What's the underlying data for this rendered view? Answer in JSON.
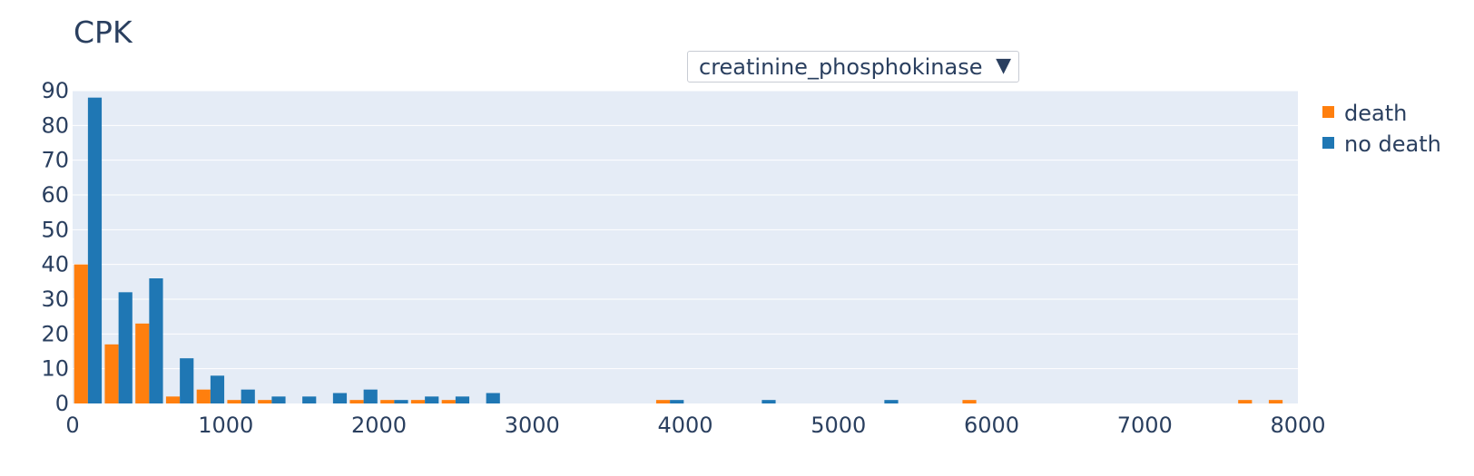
{
  "dropdown": {
    "selected": "creatinine_phosphokinase",
    "arrow": "▼"
  },
  "colors": {
    "death": "#ff7f0e",
    "no_death": "#1f77b4",
    "plot_bg": "#e5ecf6",
    "grid": "#ffffff",
    "text": "#2a3f5f"
  },
  "chart_data": {
    "type": "bar",
    "title": "CPK",
    "xlabel": "",
    "ylabel": "",
    "xlim": [
      0,
      8000
    ],
    "ylim": [
      0,
      90
    ],
    "bin_width": 200,
    "xticks": [
      0,
      1000,
      2000,
      3000,
      4000,
      5000,
      6000,
      7000,
      8000
    ],
    "yticks": [
      0,
      10,
      20,
      30,
      40,
      50,
      60,
      70,
      80,
      90
    ],
    "grid": true,
    "legend": "top-right",
    "bin_starts": [
      0,
      200,
      400,
      600,
      800,
      1000,
      1200,
      1400,
      1600,
      1800,
      2000,
      2200,
      2400,
      2600,
      2800,
      3000,
      3200,
      3400,
      3600,
      3800,
      4000,
      4200,
      4400,
      4600,
      4800,
      5000,
      5200,
      5400,
      5600,
      5800,
      6000,
      6200,
      6400,
      6600,
      6800,
      7000,
      7200,
      7400,
      7600,
      7800
    ],
    "series": [
      {
        "name": "death",
        "values": [
          40,
          17,
          23,
          2,
          4,
          1,
          1,
          0,
          0,
          1,
          1,
          1,
          1,
          0,
          0,
          0,
          0,
          0,
          0,
          1,
          0,
          0,
          0,
          0,
          0,
          0,
          0,
          0,
          0,
          1,
          0,
          0,
          0,
          0,
          0,
          0,
          0,
          0,
          1,
          1
        ]
      },
      {
        "name": "no death",
        "values": [
          88,
          32,
          36,
          13,
          8,
          4,
          2,
          2,
          3,
          4,
          1,
          2,
          2,
          3,
          0,
          0,
          0,
          0,
          0,
          1,
          0,
          0,
          1,
          0,
          0,
          0,
          1,
          0,
          0,
          0,
          0,
          0,
          0,
          0,
          0,
          0,
          0,
          0,
          0,
          0
        ]
      }
    ]
  }
}
